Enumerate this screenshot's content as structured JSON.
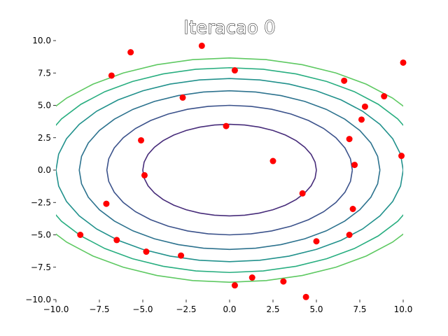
{
  "chart_data": {
    "type": "scatter",
    "title": "Iteracao 0",
    "xlabel": "",
    "ylabel": "",
    "xlim": [
      -10,
      10
    ],
    "ylim": [
      -10,
      10
    ],
    "xticks": [
      -10,
      -7.5,
      -5,
      -2.5,
      0,
      2.5,
      5,
      7.5,
      10
    ],
    "yticks": [
      -10,
      -7.5,
      -5,
      -2.5,
      0,
      2.5,
      5,
      7.5,
      10
    ],
    "xtick_labels": [
      "−10.0",
      "−7.5",
      "−5.0",
      "−2.5",
      "0.0",
      "2.5",
      "5.0",
      "7.5",
      "10.0"
    ],
    "ytick_labels": [
      "−10.0",
      "−7.5",
      "−5.0",
      "−2.5",
      "0.0",
      "2.5",
      "5.0",
      "7.5",
      "10.0"
    ],
    "grid": false,
    "contour": {
      "function": "x^2/2 + y^2",
      "levels": [
        12.5,
        25,
        37.5,
        50,
        62.5,
        75
      ],
      "colors": [
        "#472c7a",
        "#3b528b",
        "#2c728e",
        "#21918c",
        "#28ae80",
        "#5ec962",
        "#addc30"
      ]
    },
    "points": {
      "color": "#ff0000",
      "x": [
        -5.7,
        -6.8,
        -1.6,
        0.3,
        -2.7,
        -0.2,
        -5.1,
        -4.9,
        2.5,
        6.6,
        8.9,
        7.8,
        7.6,
        6.9,
        7.2,
        10.0,
        9.9,
        4.2,
        7.1,
        -7.1,
        -8.6,
        -6.5,
        -4.8,
        -2.8,
        5.0,
        6.9,
        1.3,
        3.1,
        0.3,
        4.4
      ],
      "y": [
        9.1,
        7.3,
        9.6,
        7.7,
        5.6,
        3.4,
        2.3,
        -0.4,
        0.7,
        6.9,
        5.7,
        4.9,
        3.9,
        2.4,
        0.4,
        8.3,
        1.1,
        -1.8,
        -3.0,
        -2.6,
        -5.0,
        -5.4,
        -6.3,
        -6.6,
        -5.5,
        -5.0,
        -8.3,
        -8.6,
        -8.9,
        -9.8
      ]
    }
  }
}
